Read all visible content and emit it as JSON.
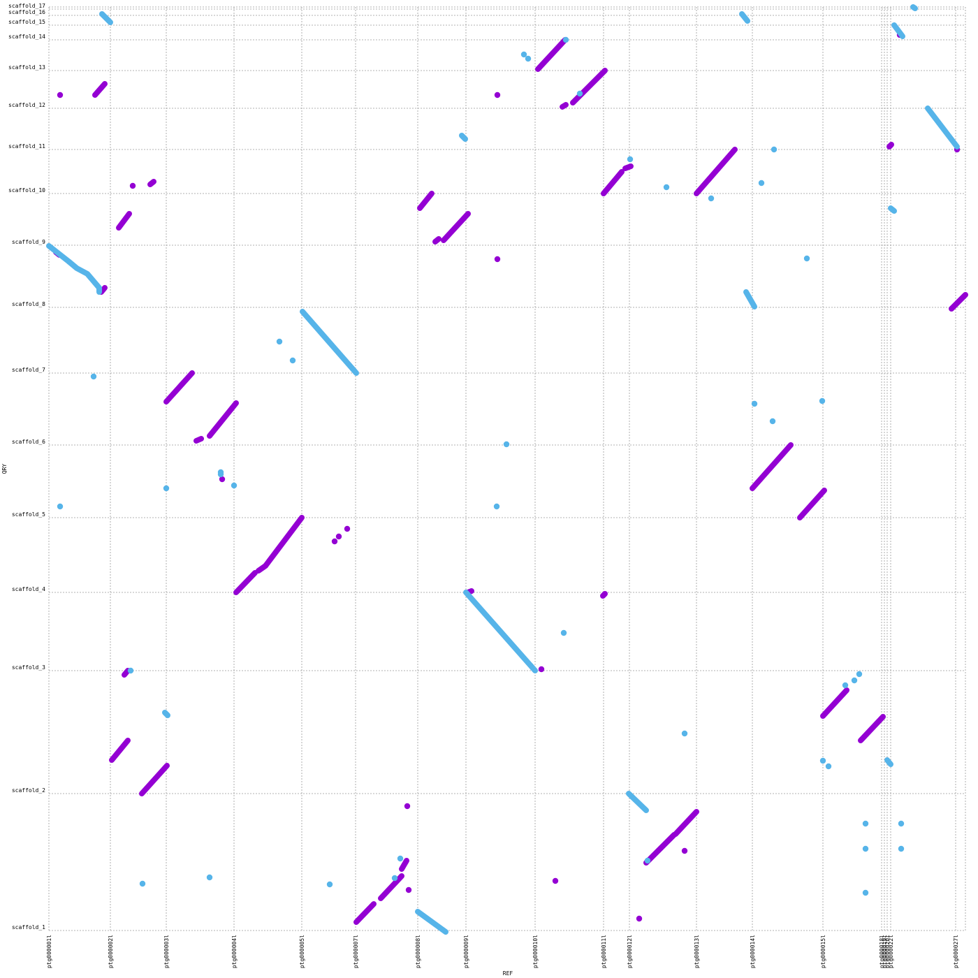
{
  "chart_data": {
    "type": "scatter",
    "xlabel": "REF",
    "ylabel": "QRY",
    "grid": true,
    "xlim": [
      0,
      1312
    ],
    "ylim": [
      0,
      1322
    ],
    "colors": {
      "forward": "#9400d3",
      "reverse": "#56b4e9",
      "grid": "#999999"
    },
    "x_ticks": [
      {
        "label": "ptg000001l",
        "pos": 0
      },
      {
        "label": "ptg000002l",
        "pos": 88
      },
      {
        "label": "ptg000003l",
        "pos": 168
      },
      {
        "label": "ptg000004l",
        "pos": 265
      },
      {
        "label": "ptg000005l",
        "pos": 362
      },
      {
        "label": "ptg000007l",
        "pos": 439
      },
      {
        "label": "ptg000008l",
        "pos": 528
      },
      {
        "label": "ptg000009l",
        "pos": 597
      },
      {
        "label": "ptg000010l",
        "pos": 696
      },
      {
        "label": "ptg000011l",
        "pos": 794
      },
      {
        "label": "ptg000012l",
        "pos": 831
      },
      {
        "label": "ptg000013l",
        "pos": 927
      },
      {
        "label": "ptg000014l",
        "pos": 1007
      },
      {
        "label": "ptg000015l",
        "pos": 1108
      },
      {
        "label": "ptg000018l",
        "pos": 1192
      },
      {
        "label": "ptg000019l",
        "pos": 1196
      },
      {
        "label": "ptg000020l",
        "pos": 1200
      },
      {
        "label": "ptg000022l",
        "pos": 1205
      },
      {
        "label": "ptg000027l",
        "pos": 1298
      }
    ],
    "y_ticks": [
      {
        "label": "scaffold_1",
        "pos": 0
      },
      {
        "label": "scaffold_2",
        "pos": 196
      },
      {
        "label": "scaffold_3",
        "pos": 372
      },
      {
        "label": "scaffold_4",
        "pos": 484
      },
      {
        "label": "scaffold_5",
        "pos": 591
      },
      {
        "label": "scaffold_6",
        "pos": 695
      },
      {
        "label": "scaffold_7",
        "pos": 798
      },
      {
        "label": "scaffold_8",
        "pos": 892
      },
      {
        "label": "scaffold_9",
        "pos": 981
      },
      {
        "label": "scaffold_10",
        "pos": 1055
      },
      {
        "label": "scaffold_11",
        "pos": 1118
      },
      {
        "label": "scaffold_12",
        "pos": 1177
      },
      {
        "label": "scaffold_13",
        "pos": 1231
      },
      {
        "label": "scaffold_14",
        "pos": 1275
      },
      {
        "label": "scaffold_15",
        "pos": 1296
      },
      {
        "label": "scaffold_16",
        "pos": 1310
      },
      {
        "label": "scaffold_17",
        "pos": 1319
      }
    ],
    "series": [
      {
        "color": "forward",
        "segments": [
          [
            [
              66,
              1196
            ],
            [
              80,
              1212
            ]
          ],
          [
            [
              145,
              1068
            ],
            [
              150,
              1072
            ]
          ],
          [
            [
              100,
              1006
            ],
            [
              115,
              1026
            ]
          ],
          [
            [
              10,
              971
            ],
            [
              15,
              967
            ]
          ],
          [
            [
              75,
              914
            ],
            [
              80,
              920
            ]
          ],
          [
            [
              168,
              757
            ],
            [
              205,
              798
            ]
          ],
          [
            [
              211,
              701
            ],
            [
              218,
              704
            ]
          ],
          [
            [
              230,
              708
            ],
            [
              268,
              755
            ]
          ],
          [
            [
              268,
              484
            ],
            [
              295,
              512
            ]
          ],
          [
            [
              300,
              515
            ],
            [
              310,
              522
            ]
          ],
          [
            [
              310,
              522
            ],
            [
              362,
              591
            ]
          ],
          [
            [
              440,
              12
            ],
            [
              465,
              38
            ]
          ],
          [
            [
              475,
              46
            ],
            [
              505,
              78
            ]
          ],
          [
            [
              505,
              88
            ],
            [
              512,
              100
            ]
          ],
          [
            [
              531,
              1034
            ],
            [
              548,
              1055
            ]
          ],
          [
            [
              553,
              986
            ],
            [
              558,
              990
            ]
          ],
          [
            [
              565,
              988
            ],
            [
              600,
              1026
            ]
          ],
          [
            [
              600,
              484
            ],
            [
              605,
              486
            ]
          ],
          [
            [
              700,
              1233
            ],
            [
              739,
              1275
            ]
          ],
          [
            [
              735,
              1179
            ],
            [
              740,
              1182
            ]
          ],
          [
            [
              750,
              1185
            ],
            [
              796,
              1231
            ]
          ],
          [
            [
              794,
              1055
            ],
            [
              820,
              1086
            ]
          ],
          [
            [
              825,
              1091
            ],
            [
              833,
              1094
            ]
          ],
          [
            [
              927,
              1055
            ],
            [
              982,
              1118
            ]
          ],
          [
            [
              1007,
              633
            ],
            [
              1062,
              695
            ]
          ],
          [
            [
              1075,
              591
            ],
            [
              1110,
              630
            ]
          ],
          [
            [
              855,
              97
            ],
            [
              895,
              137
            ]
          ],
          [
            [
              897,
              138
            ],
            [
              927,
              170
            ]
          ],
          [
            [
              1108,
              307
            ],
            [
              1142,
              344
            ]
          ],
          [
            [
              1162,
              272
            ],
            [
              1194,
              306
            ]
          ],
          [
            [
              1203,
              1122
            ],
            [
              1206,
              1125
            ]
          ],
          [
            [
              1292,
              890
            ],
            [
              1312,
              910
            ]
          ],
          [
            [
              108,
              366
            ],
            [
              113,
              372
            ]
          ],
          [
            [
              90,
              244
            ],
            [
              113,
              272
            ]
          ],
          [
            [
              133,
              196
            ],
            [
              169,
              236
            ]
          ],
          [
            [
              793,
              479
            ],
            [
              796,
              482
            ]
          ]
        ],
        "points": [
          [
            16,
            1196
          ],
          [
            120,
            1066
          ],
          [
            409,
            557
          ],
          [
            415,
            564
          ],
          [
            427,
            575
          ],
          [
            513,
            178
          ],
          [
            515,
            58
          ],
          [
            725,
            71
          ],
          [
            642,
            1196
          ],
          [
            642,
            961
          ],
          [
            705,
            374
          ],
          [
            845,
            17
          ],
          [
            910,
            114
          ],
          [
            1300,
            1118
          ],
          [
            1218,
            1282
          ],
          [
            248,
            646
          ]
        ]
      },
      {
        "color": "reverse",
        "segments": [
          [
            [
              0,
              980
            ],
            [
              28,
              958
            ],
            [
              40,
              948
            ],
            [
              55,
              940
            ],
            [
              72,
              920
            ],
            [
              72,
              914
            ]
          ],
          [
            [
              76,
              1312
            ],
            [
              88,
              1300
            ]
          ],
          [
            [
              363,
              886
            ],
            [
              440,
              798
            ]
          ],
          [
            [
              597,
              484
            ],
            [
              696,
              372
            ]
          ],
          [
            [
              830,
              196
            ],
            [
              855,
              172
            ]
          ],
          [
            [
              528,
              27
            ],
            [
              568,
              -2
            ]
          ],
          [
            [
              992,
              1312
            ],
            [
              1000,
              1302
            ]
          ],
          [
            [
              998,
              914
            ],
            [
              1010,
              893
            ]
          ],
          [
            [
              1210,
              1296
            ],
            [
              1222,
              1280
            ]
          ],
          [
            [
              1258,
              1177
            ],
            [
              1300,
              1122
            ]
          ],
          [
            [
              1205,
              1034
            ],
            [
              1210,
              1030
            ]
          ],
          [
            [
              1200,
              244
            ],
            [
              1205,
              238
            ]
          ],
          [
            [
              591,
              1138
            ],
            [
              596,
              1133
            ]
          ],
          [
            [
              166,
              312
            ],
            [
              170,
              308
            ]
          ],
          [
            [
              1237,
              1322
            ],
            [
              1240,
              1320
            ]
          ]
        ],
        "points": [
          [
            680,
            1254
          ],
          [
            686,
            1248
          ],
          [
            740,
            1275
          ],
          [
            760,
            1198
          ],
          [
            832,
            1104
          ],
          [
            884,
            1064
          ],
          [
            1020,
            1070
          ],
          [
            1038,
            1118
          ],
          [
            948,
            1048
          ],
          [
            330,
            843
          ],
          [
            349,
            816
          ],
          [
            64,
            793
          ],
          [
            655,
            696
          ],
          [
            16,
            607
          ],
          [
            168,
            633
          ],
          [
            246,
            656
          ],
          [
            265,
            637
          ],
          [
            246,
            653
          ],
          [
            641,
            607
          ],
          [
            737,
            426
          ],
          [
            910,
            282
          ],
          [
            1010,
            754
          ],
          [
            1036,
            729
          ],
          [
            1107,
            758
          ],
          [
            1085,
            962
          ],
          [
            117,
            372
          ],
          [
            1108,
            243
          ],
          [
            1116,
            235
          ],
          [
            1169,
            153
          ],
          [
            1220,
            153
          ],
          [
            1169,
            117
          ],
          [
            1220,
            117
          ],
          [
            1169,
            54
          ],
          [
            134,
            67
          ],
          [
            230,
            76
          ],
          [
            402,
            66
          ],
          [
            495,
            75
          ],
          [
            503,
            103
          ],
          [
            857,
            100
          ],
          [
            1140,
            351
          ],
          [
            1153,
            358
          ],
          [
            1160,
            367
          ]
        ]
      }
    ]
  }
}
